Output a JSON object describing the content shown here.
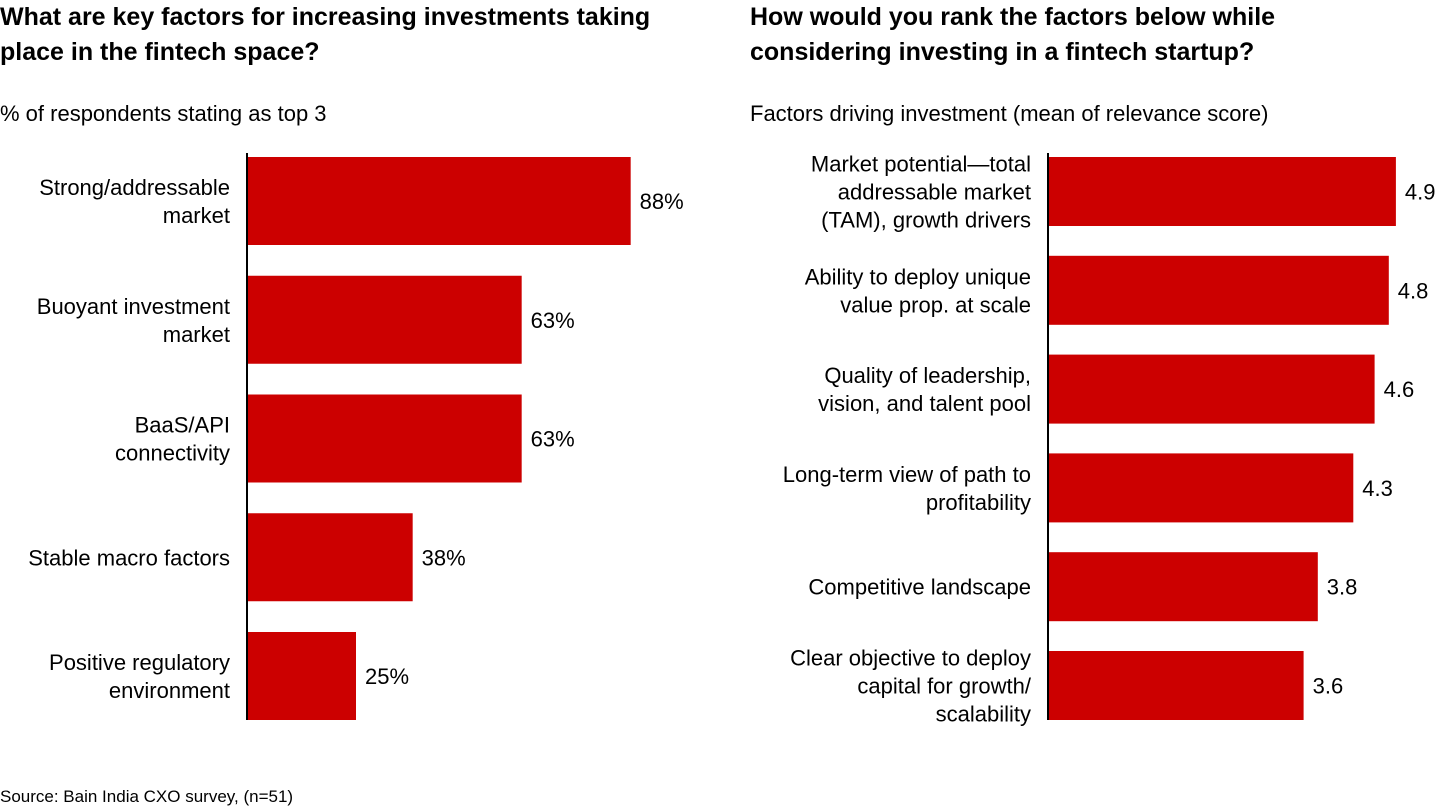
{
  "chart_data": [
    {
      "type": "bar",
      "orientation": "horizontal",
      "title": "What are key factors for increasing investments taking place in the fintech space?",
      "subtitle": "% of respondents stating as top 3",
      "categories": [
        [
          "Strong/addressable",
          "market"
        ],
        [
          "Buoyant investment",
          "market"
        ],
        [
          "BaaS/API",
          "connectivity"
        ],
        [
          "Stable macro factors"
        ],
        [
          "Positive regulatory",
          "environment"
        ]
      ],
      "values": [
        88,
        63,
        63,
        38,
        25
      ],
      "value_labels": [
        "88%",
        "63%",
        "63%",
        "38%",
        "25%"
      ],
      "xlim": [
        0,
        100
      ],
      "bar_color": "#cc0000",
      "grid": false,
      "legend": "none"
    },
    {
      "type": "bar",
      "orientation": "horizontal",
      "title": "How would you rank the factors below while considering investing in a fintech startup?",
      "subtitle": "Factors driving investment (mean of relevance score)",
      "categories": [
        [
          "Market potential—total",
          "addressable market ",
          "(TAM), growth drivers"
        ],
        [
          "Ability to deploy unique",
          "value prop. at scale"
        ],
        [
          "Quality of leadership,",
          "vision, and talent pool"
        ],
        [
          "Long-term view of path to",
          "profitability"
        ],
        [
          "Competitive landscape"
        ],
        [
          "Clear objective to deploy",
          "capital for growth/",
          "scalability"
        ]
      ],
      "values": [
        4.9,
        4.8,
        4.6,
        4.3,
        3.8,
        3.6
      ],
      "value_labels": [
        "4.9",
        "4.8",
        "4.6",
        "4.3",
        "3.8",
        "3.6"
      ],
      "xlim": [
        0,
        5
      ],
      "bar_color": "#cc0000",
      "grid": false,
      "legend": "none"
    }
  ],
  "source": "Source: Bain India CXO survey, (n=51)"
}
